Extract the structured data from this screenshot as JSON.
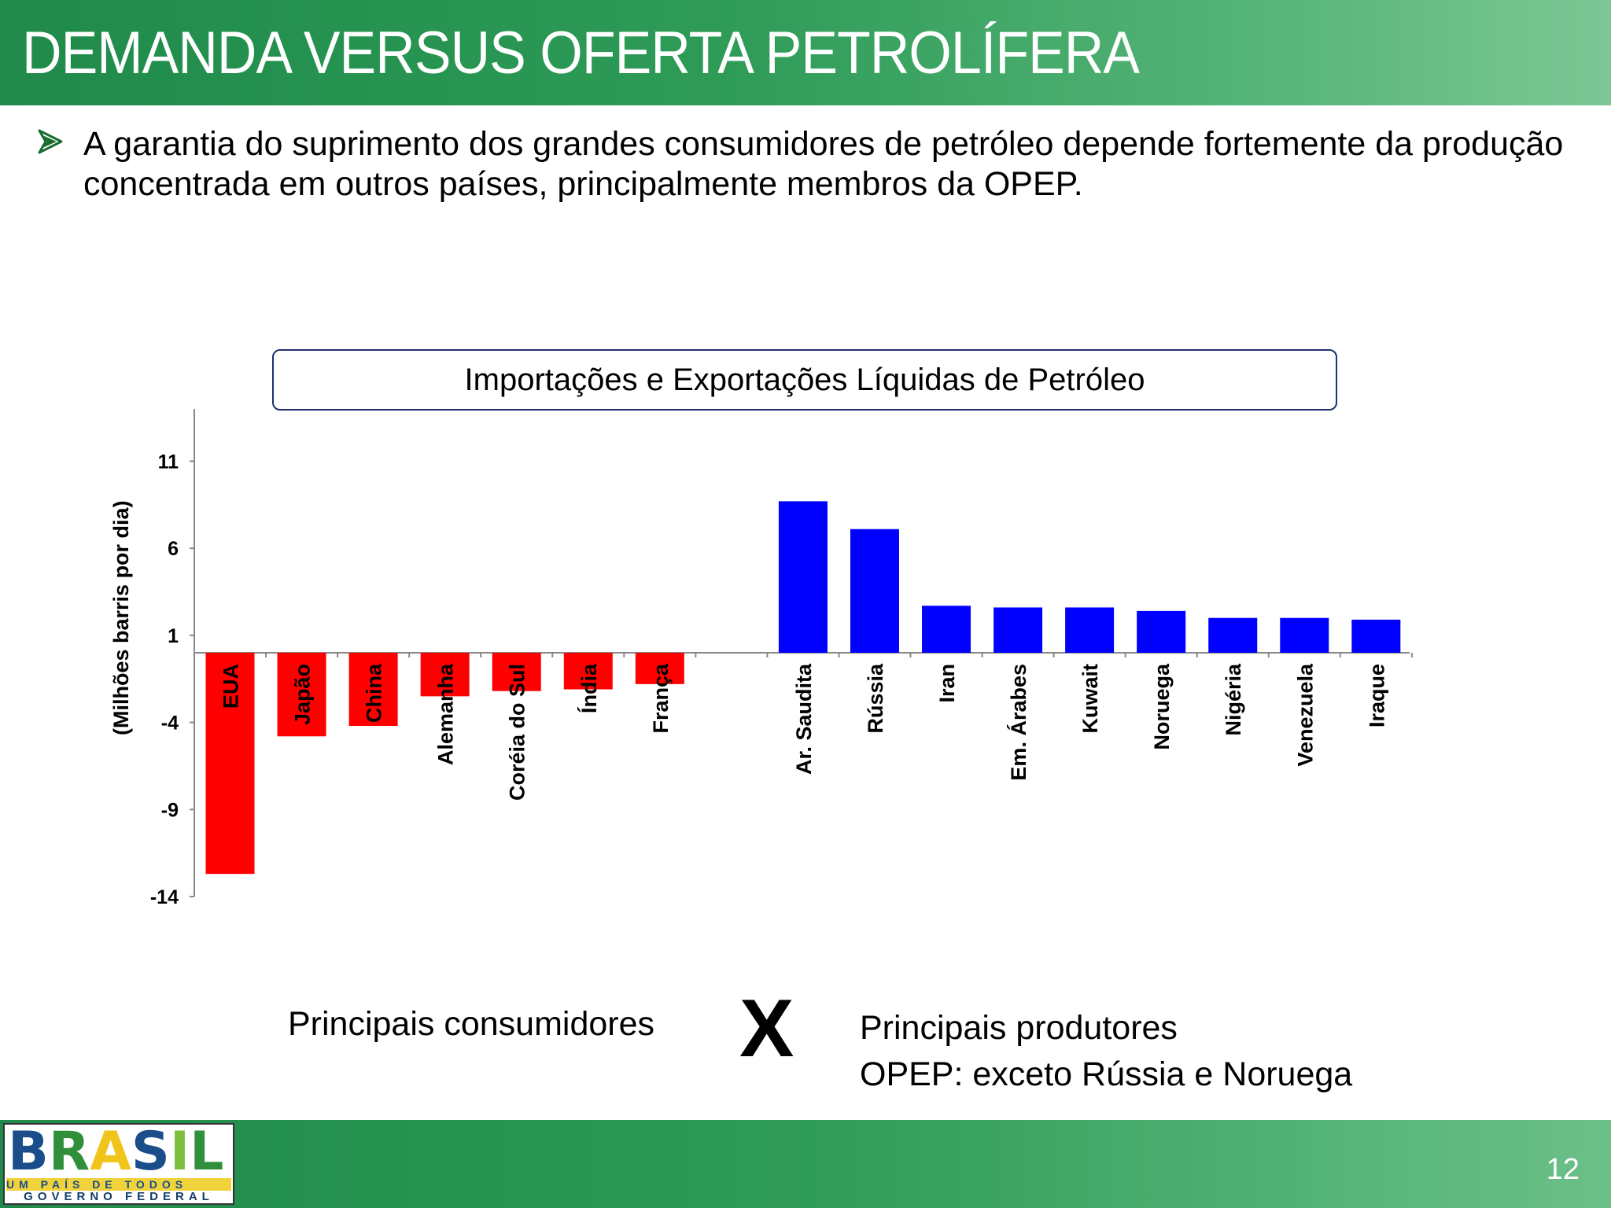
{
  "slide": {
    "title": "DEMANDA VERSUS OFERTA PETROLÍFERA",
    "bullet": "A garantia do suprimento dos grandes consumidores de petróleo depende fortemente da produção concentrada em outros países, principalmente membros da OPEP.",
    "consumers_label": "Principais consumidores",
    "versus": "X",
    "producers_label": "Principais produtores",
    "producers_note": "OPEP: exceto Rússia e Noruega",
    "page_number": "12"
  },
  "logo": {
    "letters": "BRASIL",
    "line1": "UM PAÍS DE TODOS",
    "line2": "GOVERNO FEDERAL"
  },
  "colors": {
    "header_green": "#2e9b57",
    "importer": "#ff0000",
    "exporter": "#0000ff"
  },
  "icons": {
    "bullet": "arrow-bullet-icon"
  },
  "chart_data": {
    "type": "bar",
    "title": "Importações e Exportações Líquidas de Petróleo",
    "ylabel": "(Milhões barris por dia)",
    "xlabel": "",
    "ylim": [
      -14,
      14
    ],
    "yticks": [
      11,
      6,
      1,
      -4,
      -9,
      -14
    ],
    "grid": false,
    "series": [
      {
        "categories": [
          "EUA",
          "Japão",
          "China",
          "Alemanha",
          "Coréia do Sul",
          "Índia",
          "França"
        ],
        "values": [
          -12.7,
          -4.8,
          -4.2,
          -2.5,
          -2.2,
          -2.1,
          -1.8
        ],
        "color": "#ff0000"
      },
      {
        "categories": [
          "Ar. Saudita",
          "Rússia",
          "Iran",
          "Em. Árabes",
          "Kuwait",
          "Noruega",
          "Nigéria",
          "Venezuela",
          "Iraque"
        ],
        "values": [
          8.7,
          7.1,
          2.7,
          2.6,
          2.6,
          2.4,
          2.0,
          2.0,
          1.9
        ],
        "color": "#0000ff"
      }
    ]
  }
}
